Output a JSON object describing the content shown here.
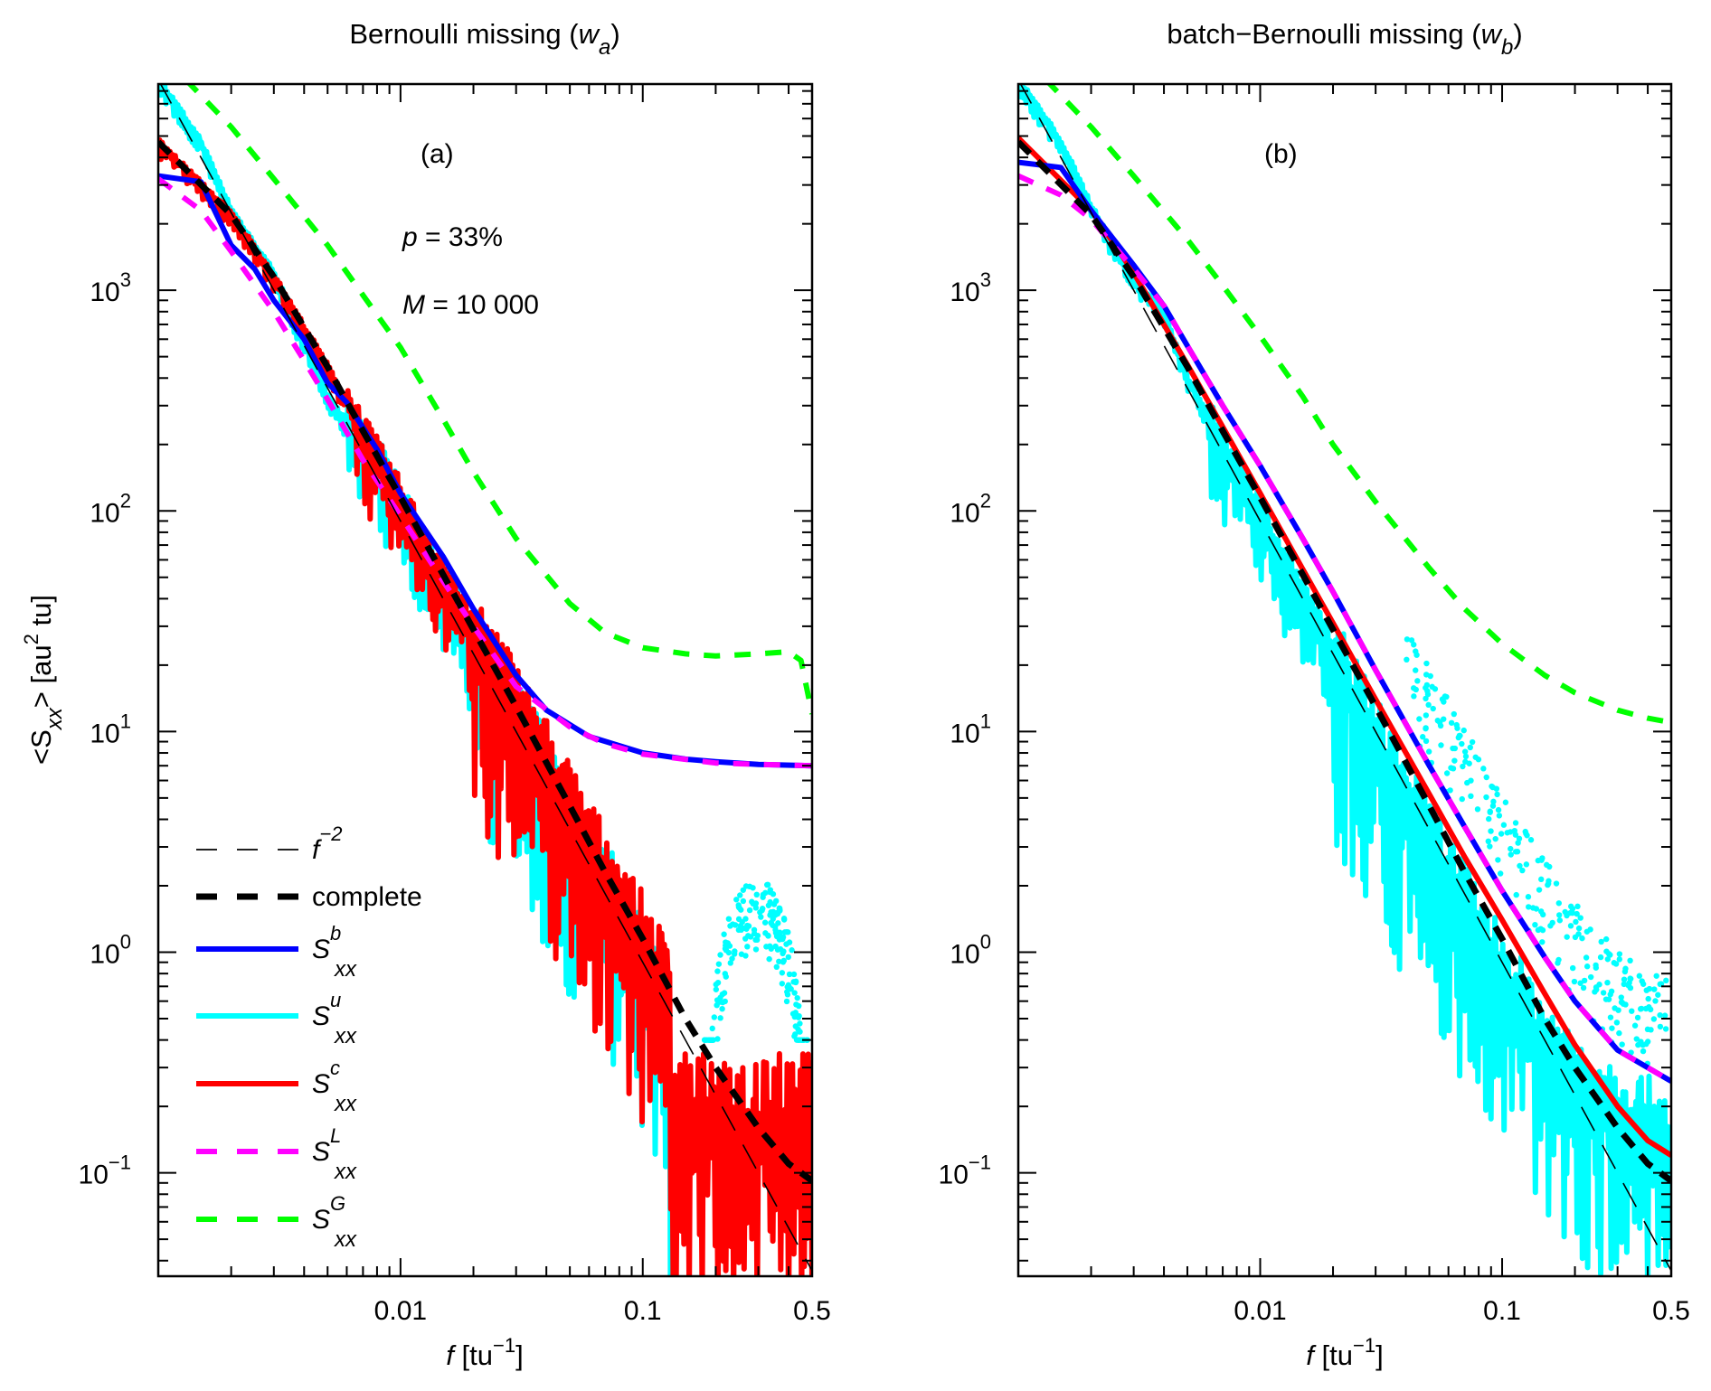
{
  "chart_data": [
    {
      "type": "line",
      "panel": "a",
      "title": "Bernoulli missing (w_a)",
      "title_main": "Bernoulli missing (",
      "title_sym": "w",
      "title_sub": "a",
      "title_close": ")",
      "panel_label": "(a)",
      "annotations": [
        {
          "sym": "p",
          "text": " = 33%"
        },
        {
          "sym": "M",
          "text": " = 10 000"
        }
      ],
      "xlabel": "f [tu^-1]",
      "ylabel": "<S_xx> [au^2 tu]",
      "xscale": "log",
      "yscale": "log",
      "xlim": [
        0.001,
        0.5
      ],
      "ylim": [
        0.034,
        8600
      ],
      "xticks": [
        {
          "v": 0.01,
          "label": "0.01"
        },
        {
          "v": 0.1,
          "label": "0.1"
        },
        {
          "v": 0.5,
          "label": "0.5"
        }
      ],
      "yticks": [
        {
          "v": 0.1,
          "exp": "−1"
        },
        {
          "v": 1,
          "exp": "0"
        },
        {
          "v": 10,
          "exp": "1"
        },
        {
          "v": 100,
          "exp": "2"
        },
        {
          "v": 1000,
          "exp": "3"
        }
      ],
      "grid": false,
      "legend_position": "bottom-left",
      "series": [
        {
          "name": "f^-2",
          "color": "#000000",
          "style": "thin-dash",
          "x": [
            0.001,
            0.5
          ],
          "y": [
            9000,
            0.036
          ]
        },
        {
          "name": "complete",
          "color": "#000000",
          "style": "thick-dash",
          "x": [
            0.001,
            0.002,
            0.003,
            0.005,
            0.007,
            0.01,
            0.02,
            0.03,
            0.05,
            0.07,
            0.1,
            0.15,
            0.2,
            0.3,
            0.4,
            0.5
          ],
          "y": [
            4700,
            2200,
            1150,
            450,
            230,
            115,
            29,
            13,
            4.6,
            2.3,
            1.15,
            0.5,
            0.3,
            0.16,
            0.11,
            0.092
          ]
        },
        {
          "name": "S_xx^b",
          "color": "#0000ff",
          "style": "solid",
          "x": [
            0.001,
            0.0015,
            0.002,
            0.0025,
            0.003,
            0.004,
            0.005,
            0.006,
            0.008,
            0.01,
            0.015,
            0.02,
            0.03,
            0.04,
            0.06,
            0.1,
            0.15,
            0.2,
            0.3,
            0.5
          ],
          "y": [
            3300,
            3100,
            1600,
            1250,
            900,
            600,
            380,
            310,
            190,
            120,
            62,
            36,
            18,
            12.5,
            9.5,
            8.0,
            7.5,
            7.3,
            7.1,
            7.0
          ]
        },
        {
          "name": "S_xx^u",
          "color": "#00ffff",
          "style": "solid-noisy",
          "x": [
            0.001,
            0.0015,
            0.002,
            0.0025,
            0.003,
            0.004,
            0.005,
            0.006,
            0.008,
            0.01,
            0.015,
            0.02,
            0.03,
            0.05,
            0.07,
            0.1,
            0.13,
            0.2,
            0.3,
            0.4,
            0.5
          ],
          "y": [
            9000,
            4700,
            2300,
            1600,
            1200,
            600,
            330,
            250,
            180,
            115,
            50,
            26,
            11,
            4,
            2,
            1.0,
            0.6,
            1.2,
            2.0,
            1.6,
            0.5
          ]
        },
        {
          "name": "S_xx^c",
          "color": "#ff0000",
          "style": "solid-noisy",
          "x": [
            0.001,
            0.002,
            0.003,
            0.005,
            0.007,
            0.01,
            0.02,
            0.03,
            0.05,
            0.07,
            0.1,
            0.15,
            0.2,
            0.3,
            0.4,
            0.5
          ],
          "y": [
            4700,
            2200,
            1150,
            450,
            230,
            115,
            29,
            13,
            4.6,
            2.3,
            1.15,
            0.5,
            0.3,
            0.16,
            0.11,
            0.092
          ]
        },
        {
          "name": "S_xx^L",
          "color": "#ff00ff",
          "style": "dash",
          "x": [
            0.001,
            0.0015,
            0.002,
            0.003,
            0.004,
            0.005,
            0.007,
            0.01,
            0.015,
            0.02,
            0.03,
            0.05,
            0.07,
            0.1,
            0.2,
            0.3,
            0.5
          ],
          "y": [
            3200,
            2300,
            1500,
            800,
            480,
            320,
            170,
            95,
            48,
            30,
            16,
            10.5,
            8.8,
            7.9,
            7.2,
            7.1,
            7.0
          ]
        },
        {
          "name": "S_xx^G",
          "color": "#00ff00",
          "style": "dash",
          "x": [
            0.0013,
            0.002,
            0.003,
            0.005,
            0.007,
            0.01,
            0.015,
            0.02,
            0.03,
            0.05,
            0.07,
            0.1,
            0.15,
            0.2,
            0.3,
            0.4,
            0.45,
            0.5
          ],
          "y": [
            9000,
            5500,
            3200,
            1600,
            950,
            550,
            260,
            150,
            75,
            38,
            28,
            24,
            22.5,
            22,
            22.5,
            23,
            21,
            12
          ]
        }
      ],
      "scatter": [
        {
          "name": "S_xx^u high-frequency scatter",
          "color": "#00ffff",
          "x_range": [
            0.18,
            0.48
          ],
          "y_range": [
            0.4,
            2.4
          ]
        }
      ]
    },
    {
      "type": "line",
      "panel": "b",
      "title": "batch−Bernoulli missing (w_b)",
      "title_main": "batch−Bernoulli missing (",
      "title_sym": "w",
      "title_sub": "b",
      "title_close": ")",
      "panel_label": "(b)",
      "xlabel": "f [tu^-1]",
      "xscale": "log",
      "yscale": "log",
      "xlim": [
        0.001,
        0.5
      ],
      "ylim": [
        0.034,
        8600
      ],
      "xticks": [
        {
          "v": 0.01,
          "label": "0.01"
        },
        {
          "v": 0.1,
          "label": "0.1"
        },
        {
          "v": 0.5,
          "label": "0.5"
        }
      ],
      "yticks": [
        {
          "v": 0.1,
          "exp": "−1"
        },
        {
          "v": 1,
          "exp": "0"
        },
        {
          "v": 10,
          "exp": "1"
        },
        {
          "v": 100,
          "exp": "2"
        },
        {
          "v": 1000,
          "exp": "3"
        }
      ],
      "grid": false,
      "series": [
        {
          "name": "f^-2",
          "color": "#000000",
          "style": "thin-dash",
          "x": [
            0.001,
            0.5
          ],
          "y": [
            9000,
            0.036
          ]
        },
        {
          "name": "complete",
          "color": "#000000",
          "style": "thick-dash",
          "x": [
            0.001,
            0.002,
            0.003,
            0.005,
            0.007,
            0.01,
            0.02,
            0.03,
            0.05,
            0.07,
            0.1,
            0.15,
            0.2,
            0.3,
            0.4,
            0.5
          ],
          "y": [
            4700,
            2200,
            1150,
            450,
            230,
            115,
            29,
            13,
            4.6,
            2.3,
            1.15,
            0.5,
            0.3,
            0.16,
            0.11,
            0.092
          ]
        },
        {
          "name": "S_xx^b",
          "color": "#0000ff",
          "style": "solid",
          "x": [
            0.001,
            0.0015,
            0.002,
            0.003,
            0.004,
            0.005,
            0.007,
            0.01,
            0.015,
            0.02,
            0.03,
            0.05,
            0.07,
            0.1,
            0.15,
            0.2,
            0.3,
            0.5
          ],
          "y": [
            3800,
            3600,
            2300,
            1300,
            850,
            560,
            300,
            160,
            75,
            43,
            19,
            7.0,
            3.7,
            1.9,
            0.95,
            0.6,
            0.36,
            0.26
          ]
        },
        {
          "name": "S_xx^u",
          "color": "#00ffff",
          "style": "solid-noisy",
          "x": [
            0.001,
            0.0015,
            0.002,
            0.003,
            0.004,
            0.005,
            0.007,
            0.01,
            0.015,
            0.02,
            0.03,
            0.05,
            0.07,
            0.1,
            0.15,
            0.2,
            0.3,
            0.5
          ],
          "y": [
            9000,
            4700,
            2400,
            1100,
            800,
            400,
            200,
            100,
            42,
            22,
            9,
            3.2,
            1.6,
            0.8,
            0.4,
            0.28,
            0.2,
            0.15
          ]
        },
        {
          "name": "S_xx^c",
          "color": "#ff0000",
          "style": "solid",
          "x": [
            0.001,
            0.002,
            0.003,
            0.005,
            0.007,
            0.01,
            0.02,
            0.03,
            0.05,
            0.07,
            0.1,
            0.15,
            0.2,
            0.3,
            0.4,
            0.5
          ],
          "y": [
            4900,
            2300,
            1200,
            460,
            240,
            120,
            31,
            14,
            5.2,
            2.7,
            1.4,
            0.65,
            0.38,
            0.2,
            0.14,
            0.12
          ]
        },
        {
          "name": "S_xx^L",
          "color": "#ff00ff",
          "style": "dash",
          "x": [
            0.001,
            0.0015,
            0.002,
            0.003,
            0.004,
            0.005,
            0.007,
            0.01,
            0.015,
            0.02,
            0.03,
            0.05,
            0.07,
            0.1,
            0.15,
            0.2,
            0.3,
            0.5
          ],
          "y": [
            3300,
            2700,
            2100,
            1250,
            850,
            560,
            300,
            160,
            75,
            43,
            19,
            7.0,
            3.7,
            1.9,
            0.95,
            0.6,
            0.36,
            0.26
          ]
        },
        {
          "name": "S_xx^G",
          "color": "#00ff00",
          "style": "dash",
          "x": [
            0.0013,
            0.002,
            0.003,
            0.005,
            0.007,
            0.01,
            0.015,
            0.02,
            0.03,
            0.05,
            0.07,
            0.1,
            0.15,
            0.2,
            0.3,
            0.4,
            0.5
          ],
          "y": [
            9000,
            5500,
            3300,
            1700,
            1050,
            620,
            330,
            200,
            110,
            55,
            36,
            25,
            18,
            15,
            12.5,
            11.5,
            11
          ]
        }
      ],
      "scatter": [
        {
          "name": "S_xx^u high-frequency scatter",
          "color": "#00ffff",
          "x_range": [
            0.04,
            0.5
          ],
          "y_range": [
            0.3,
            4
          ]
        }
      ]
    }
  ],
  "legend": [
    {
      "key": "f2",
      "label_sym": "f",
      "label_sup": "−2",
      "color": "#000000",
      "style": "thin-dash"
    },
    {
      "key": "complete",
      "label": "complete",
      "color": "#000000",
      "style": "thick-dash"
    },
    {
      "key": "b",
      "label_sym": "S",
      "label_sup": "b",
      "label_sub": "xx",
      "color": "#0000ff",
      "style": "solid"
    },
    {
      "key": "u",
      "label_sym": "S",
      "label_sup": "u",
      "label_sub": "xx",
      "color": "#00ffff",
      "style": "solid"
    },
    {
      "key": "c",
      "label_sym": "S",
      "label_sup": "c",
      "label_sub": "xx",
      "color": "#ff0000",
      "style": "solid"
    },
    {
      "key": "L",
      "label_sym": "S",
      "label_sup": "L",
      "label_sub": "xx",
      "color": "#ff00ff",
      "style": "dash"
    },
    {
      "key": "G",
      "label_sym": "S",
      "label_sup": "G",
      "label_sub": "xx",
      "color": "#00ff00",
      "style": "dash"
    }
  ],
  "axis_labels": {
    "x_sym": "f",
    "x_unit": " [tu",
    "x_sup": "−1",
    "x_close": "]",
    "y_open": "<S",
    "y_sub": "xx",
    "y_mid": "> [au",
    "y_sup": "2",
    "y_close": " tu]"
  }
}
